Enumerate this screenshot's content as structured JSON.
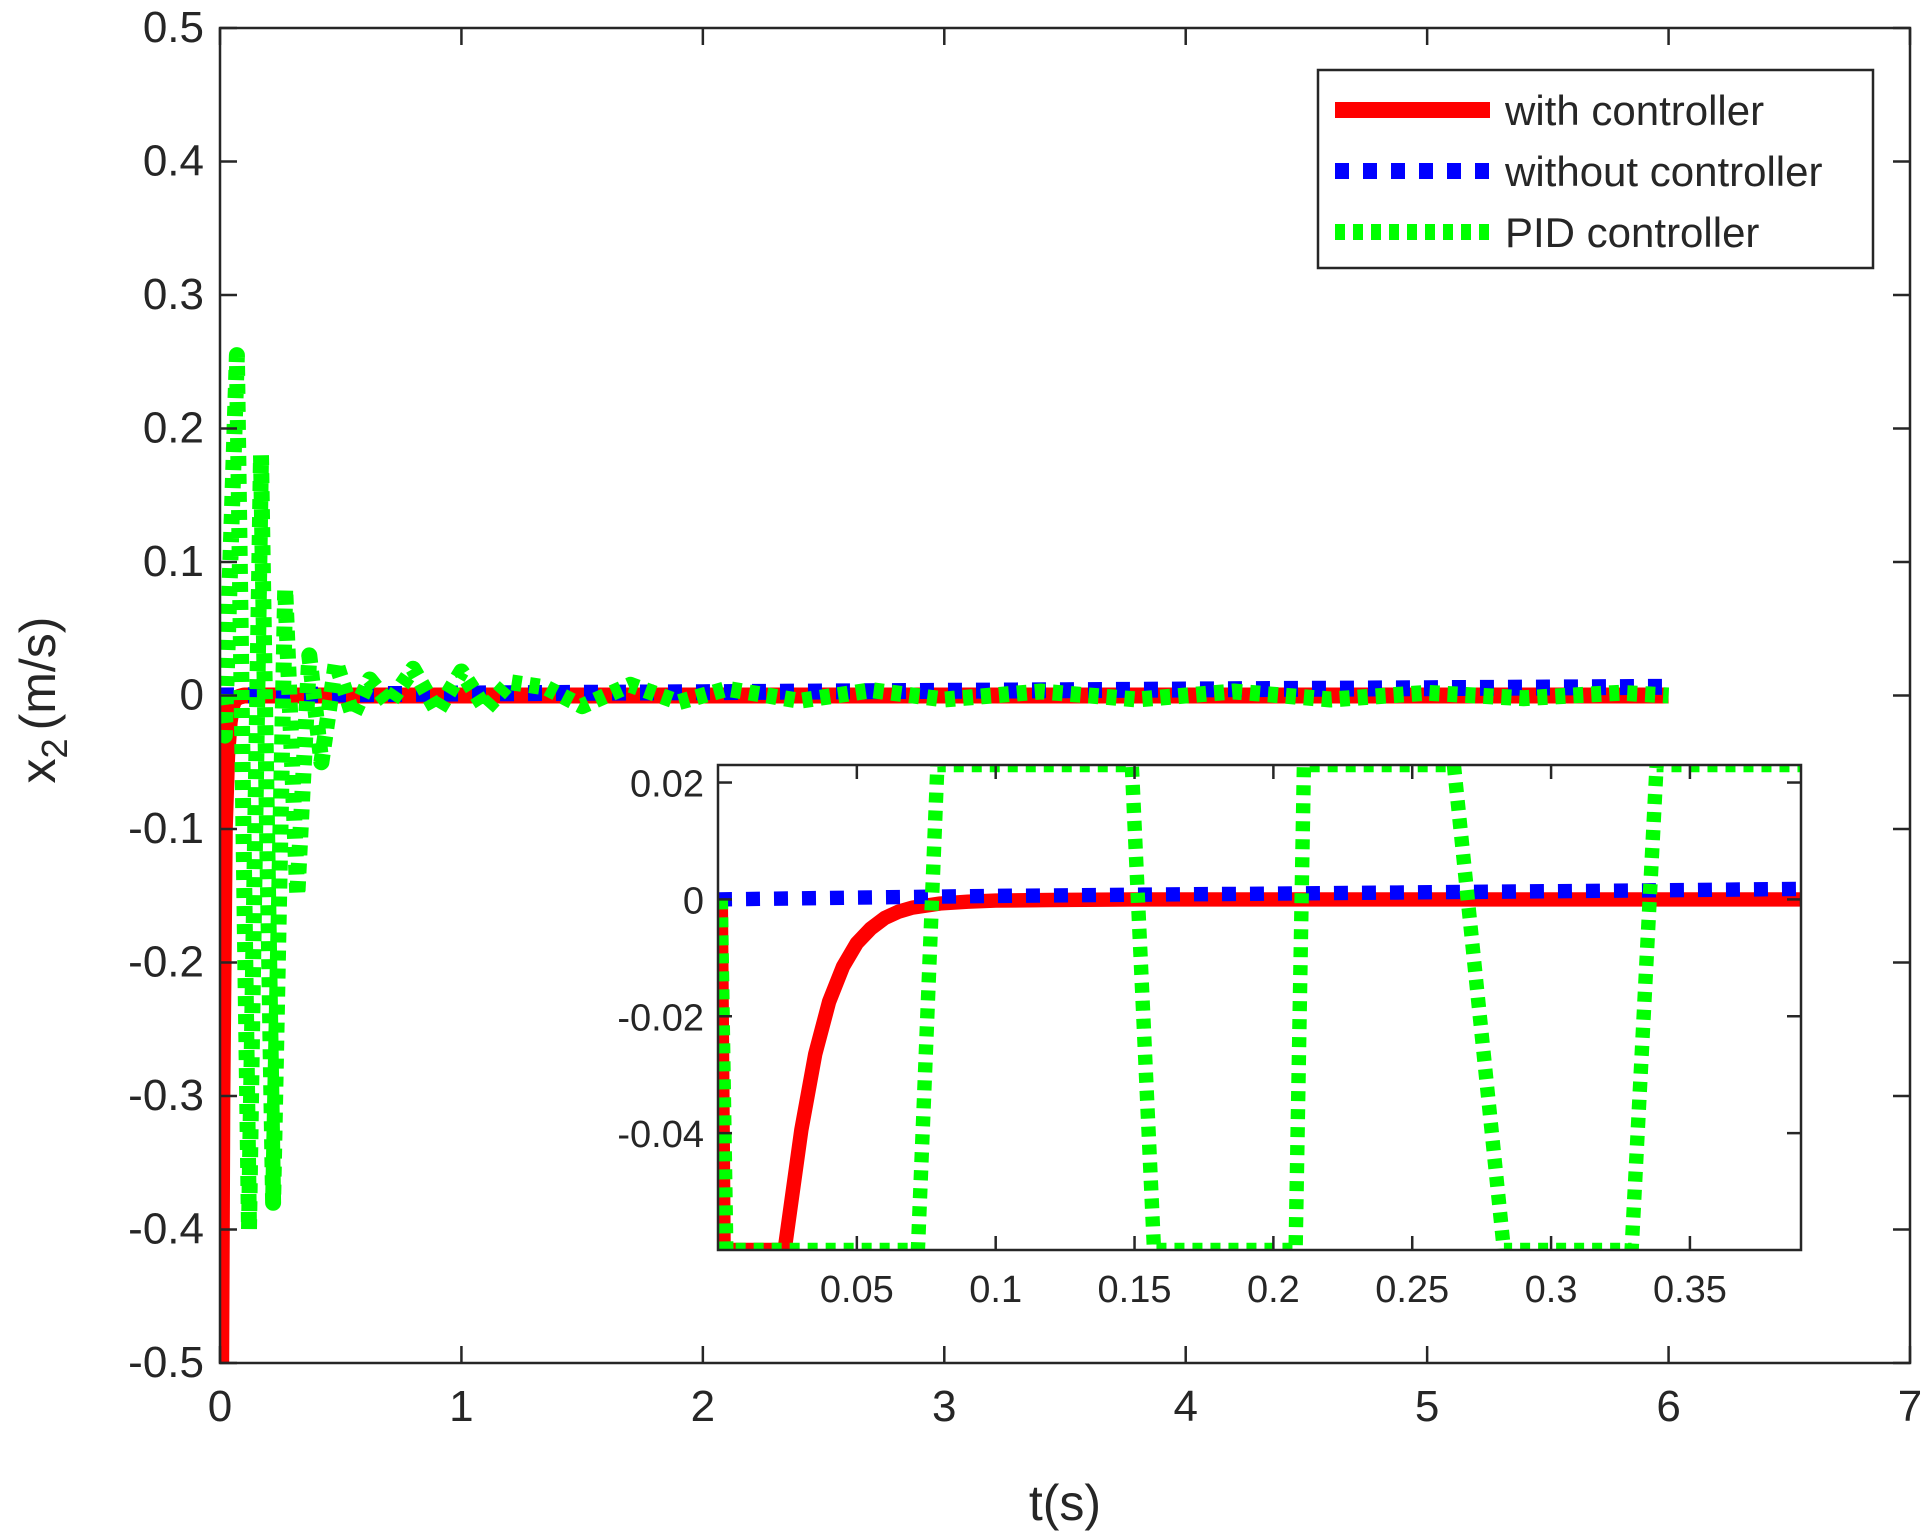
{
  "chart_data": {
    "type": "line",
    "xlabel": "t(s)",
    "ylabel": {
      "base": "x",
      "subscript": "2",
      "suffix": "(m/s)"
    },
    "xlim": [
      0,
      7
    ],
    "ylim": [
      -0.5,
      0.5
    ],
    "xticks": [
      0,
      1,
      2,
      3,
      4,
      5,
      6,
      7
    ],
    "xtick_labels": [
      "0",
      "1",
      "2",
      "3",
      "4",
      "5",
      "6",
      "7"
    ],
    "yticks": [
      -0.5,
      -0.4,
      -0.3,
      -0.2,
      -0.1,
      0,
      0.1,
      0.2,
      0.3,
      0.4,
      0.5
    ],
    "ytick_labels": [
      "-0.5",
      "-0.4",
      "-0.3",
      "-0.2",
      "-0.1",
      "0",
      "0.1",
      "0.2",
      "0.3",
      "0.4",
      "0.5"
    ],
    "legend": {
      "location": "top-right"
    },
    "series": [
      {
        "name": "with controller",
        "color": "#ff0000",
        "style": "solid",
        "x": [
          0,
          0.002,
          0.005,
          0.01,
          0.02,
          0.03,
          0.04,
          0.05,
          0.06,
          0.08,
          0.1,
          0.2,
          1,
          2,
          3,
          4,
          5,
          6
        ],
        "y": [
          0,
          -0.5,
          -0.5,
          -0.3,
          -0.1,
          -0.045,
          -0.02,
          -0.008,
          -0.003,
          -0.001,
          0,
          0,
          0,
          0,
          0,
          0,
          0,
          0
        ]
      },
      {
        "name": "without controller",
        "color": "#0000ff",
        "style": "dotted",
        "x": [
          0,
          0.5,
          1,
          1.5,
          2,
          2.5,
          3,
          3.5,
          4,
          4.5,
          5,
          5.5,
          6
        ],
        "y": [
          0,
          0.0008,
          0.0015,
          0.002,
          0.0025,
          0.003,
          0.0035,
          0.004,
          0.0045,
          0.005,
          0.0055,
          0.006,
          0.0065
        ]
      },
      {
        "name": "PID controller",
        "color": "#00ff00",
        "style": "dotted",
        "x": [
          0,
          0.02,
          0.07,
          0.12,
          0.17,
          0.22,
          0.27,
          0.32,
          0.37,
          0.42,
          0.48,
          0.55,
          0.62,
          0.7,
          0.8,
          0.9,
          1.0,
          1.1,
          1.2,
          1.35,
          1.5,
          1.7,
          1.9,
          2.1,
          2.4,
          2.7,
          3.0,
          3.4,
          3.8,
          4.2,
          4.6,
          5.0,
          5.4,
          5.8,
          6.0
        ],
        "y": [
          0,
          -0.03,
          0.255,
          -0.4,
          0.18,
          -0.38,
          0.08,
          -0.15,
          0.03,
          -0.05,
          0.025,
          -0.015,
          0.012,
          -0.006,
          0.02,
          -0.012,
          0.018,
          -0.01,
          0.01,
          0.006,
          -0.008,
          0.008,
          -0.005,
          0.005,
          -0.004,
          0.004,
          -0.003,
          0.003,
          -0.003,
          0.003,
          -0.003,
          0.002,
          -0.002,
          0.002,
          0
        ]
      }
    ],
    "inset": {
      "xlim": [
        0,
        0.39
      ],
      "ylim": [
        -0.06,
        0.023
      ],
      "xticks": [
        0.05,
        0.1,
        0.15,
        0.2,
        0.25,
        0.3,
        0.35
      ],
      "xtick_labels": [
        "0.05",
        "0.1",
        "0.15",
        "0.2",
        "0.25",
        "0.3",
        "0.35"
      ],
      "yticks": [
        -0.04,
        -0.02,
        0,
        0.02
      ],
      "ytick_labels": [
        "-0.04",
        "-0.02",
        "0",
        "0.02"
      ],
      "series": [
        {
          "name": "with controller",
          "x": [
            0.001,
            0.002,
            0.002,
            0.024,
            0.03,
            0.035,
            0.04,
            0.045,
            0.05,
            0.055,
            0.06,
            0.065,
            0.07,
            0.08,
            0.09,
            0.1,
            0.12,
            0.15,
            0.39
          ],
          "y": [
            0,
            -0.06,
            -0.06,
            -0.06,
            -0.0395,
            -0.0265,
            -0.0175,
            -0.0115,
            -0.0075,
            -0.005,
            -0.0032,
            -0.0021,
            -0.0014,
            -0.0007,
            -0.0004,
            -0.0002,
            -0.0001,
            0,
            0
          ]
        },
        {
          "name": "without controller",
          "x": [
            0.0,
            0.05,
            0.1,
            0.15,
            0.2,
            0.25,
            0.3,
            0.35,
            0.39
          ],
          "y": [
            0.0,
            0.0003,
            0.0006,
            0.0008,
            0.001,
            0.0012,
            0.0014,
            0.0016,
            0.0018
          ]
        },
        {
          "name": "PID controller",
          "x": [
            0.001,
            0.003,
            0.007,
            0.072,
            0.079,
            0.149,
            0.157,
            0.208,
            0.211,
            0.265,
            0.283,
            0.329,
            0.338,
            0.39
          ],
          "y": [
            0,
            -0.06,
            -0.06,
            -0.06,
            0.023,
            0.023,
            -0.06,
            -0.06,
            0.023,
            0.023,
            -0.06,
            -0.06,
            0.023,
            0.023
          ]
        }
      ]
    }
  }
}
